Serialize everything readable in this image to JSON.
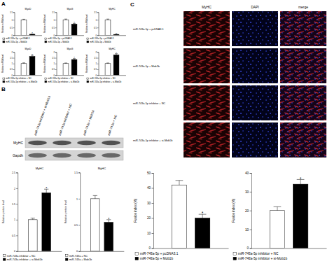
{
  "panel_labels": [
    "A",
    "B",
    "C"
  ],
  "chart_data": [
    {
      "type": "bar",
      "title": "MyoD",
      "y_label": "Relative mRNA level",
      "categories": [
        null
      ],
      "ylim": [
        0,
        1.5
      ],
      "yticks": [
        0,
        0.5,
        1,
        1.5
      ],
      "legend": "bottom",
      "series": [
        {
          "name": "miR-743a-5p + pcDNA3.1",
          "color": "#ffffff",
          "values": [
            1.0
          ],
          "errors": [
            0.04
          ],
          "significance": [
            null
          ]
        },
        {
          "name": "miR-743a-5p + Mob1b",
          "color": "#000000",
          "values": [
            0.06
          ],
          "errors": [
            0.01
          ],
          "significance": [
            "*"
          ]
        }
      ]
    },
    {
      "type": "bar",
      "title": "MyoG",
      "y_label": "Relative mRNA level",
      "categories": [
        null
      ],
      "ylim": [
        0,
        1.5
      ],
      "yticks": [
        0,
        0.5,
        1,
        1.5
      ],
      "legend": "bottom",
      "series": [
        {
          "name": "miR-743a-5p + pcDNA3.1",
          "color": "#ffffff",
          "values": [
            1.0
          ],
          "errors": [
            0.05
          ],
          "significance": [
            null
          ]
        },
        {
          "name": "miR-743a-5p + Mob1b",
          "color": "#000000",
          "values": [
            0.72
          ],
          "errors": [
            0.05
          ],
          "significance": [
            "*"
          ]
        }
      ]
    },
    {
      "type": "bar",
      "title": "MyHC",
      "y_label": "Relative mRNA level",
      "categories": [
        null
      ],
      "ylim": [
        0,
        1.5
      ],
      "yticks": [
        0,
        0.5,
        1,
        1.5
      ],
      "legend": "bottom",
      "series": [
        {
          "name": "miR-743a-5p + pcDNA3.1",
          "color": "#ffffff",
          "values": [
            1.0
          ],
          "errors": [
            0.05
          ],
          "significance": [
            null
          ]
        },
        {
          "name": "miR-743a-5p + Mob1b",
          "color": "#000000",
          "values": [
            0.05
          ],
          "errors": [
            0.01
          ],
          "significance": [
            "*"
          ]
        }
      ]
    },
    {
      "type": "bar",
      "title": "MyoD",
      "y_label": "Relative mRNA level",
      "categories": [
        null
      ],
      "ylim": [
        0,
        2
      ],
      "yticks": [
        0,
        0.5,
        1,
        1.5,
        2
      ],
      "legend": "bottom",
      "series": [
        {
          "name": "miR-743a-5p inhibitor + NC",
          "color": "#ffffff",
          "values": [
            1.0
          ],
          "errors": [
            0.06
          ],
          "significance": [
            null
          ]
        },
        {
          "name": "miR-743a-5p inhibitor + si-Mob1b",
          "color": "#000000",
          "values": [
            1.62
          ],
          "errors": [
            0.1
          ],
          "significance": [
            "*"
          ]
        }
      ]
    },
    {
      "type": "bar",
      "title": "MyoG",
      "y_label": "Relative mRNA level",
      "categories": [
        null
      ],
      "ylim": [
        0,
        2
      ],
      "yticks": [
        0,
        0.5,
        1,
        1.5,
        2
      ],
      "legend": "bottom",
      "series": [
        {
          "name": "miR-743a-5p inhibitor + NC",
          "color": "#ffffff",
          "values": [
            1.0
          ],
          "errors": [
            0.05
          ],
          "significance": [
            null
          ]
        },
        {
          "name": "miR-743a-5p inhibitor + si-Mob1b",
          "color": "#000000",
          "values": [
            1.35
          ],
          "errors": [
            0.08
          ],
          "significance": [
            "*"
          ]
        }
      ]
    },
    {
      "type": "bar",
      "title": "MyHC",
      "y_label": "Relative mRNA level",
      "categories": [
        null
      ],
      "ylim": [
        0,
        2
      ],
      "yticks": [
        0,
        0.5,
        1,
        1.5,
        2
      ],
      "legend": "bottom",
      "series": [
        {
          "name": "miR-743a-5p inhibitor + NC",
          "color": "#ffffff",
          "values": [
            1.0
          ],
          "errors": [
            0.05
          ],
          "significance": [
            null
          ]
        },
        {
          "name": "miR-743a-5p inhibitor + si-Mob1b",
          "color": "#000000",
          "values": [
            1.75
          ],
          "errors": [
            0.1
          ],
          "significance": [
            "*"
          ]
        }
      ]
    },
    {
      "type": "bar",
      "title": "MyHC",
      "y_label": "Relative protein level",
      "categories": [
        null
      ],
      "ylim": [
        0,
        2.5
      ],
      "yticks": [
        0,
        0.5,
        1,
        1.5,
        2,
        2.5
      ],
      "legend": "bottom",
      "series": [
        {
          "name": "miR-743a inhibitor + NC",
          "color": "#ffffff",
          "values": [
            1.0
          ],
          "errors": [
            0.05
          ],
          "significance": [
            null
          ]
        },
        {
          "name": "miR-743a inhibitor + si-Mob1b",
          "color": "#000000",
          "values": [
            1.85
          ],
          "errors": [
            0.12
          ],
          "significance": [
            "*"
          ]
        }
      ]
    },
    {
      "type": "bar",
      "title": "MyHC",
      "y_label": "Relative protein level",
      "categories": [
        null
      ],
      "ylim": [
        0,
        1.5
      ],
      "yticks": [
        0,
        0.5,
        1,
        1.5
      ],
      "legend": "bottom",
      "series": [
        {
          "name": "miR-743a + NC",
          "color": "#ffffff",
          "values": [
            1.0
          ],
          "errors": [
            0.06
          ],
          "significance": [
            null
          ]
        },
        {
          "name": "miR-743a + Mob1b",
          "color": "#000000",
          "values": [
            0.55
          ],
          "errors": [
            0.05
          ],
          "significance": [
            "*"
          ]
        }
      ]
    },
    {
      "type": "bar",
      "y_label": "Fusion index (%)",
      "categories": [
        null
      ],
      "ylim": [
        0,
        50
      ],
      "yticks": [
        0,
        10,
        20,
        30,
        40,
        50
      ],
      "legend": "bottom",
      "series": [
        {
          "name": "miR-743a-5p + pcDNA3.1",
          "color": "#ffffff",
          "values": [
            42
          ],
          "errors": [
            3
          ],
          "significance": [
            null
          ]
        },
        {
          "name": "miR-743a-5p + Mob1b",
          "color": "#000000",
          "values": [
            20
          ],
          "errors": [
            2.5
          ],
          "significance": [
            "*"
          ]
        }
      ]
    },
    {
      "type": "bar",
      "y_label": "Fusion index (%)",
      "categories": [
        null
      ],
      "ylim": [
        0,
        40
      ],
      "yticks": [
        0,
        10,
        20,
        30,
        40
      ],
      "legend": "bottom",
      "series": [
        {
          "name": "miR-743a-5p inhibitor + NC",
          "color": "#ffffff",
          "values": [
            20
          ],
          "errors": [
            2
          ],
          "significance": [
            null
          ]
        },
        {
          "name": "miR-743a-5p inhibitor + si-Mob1b",
          "color": "#000000",
          "values": [
            34
          ],
          "errors": [
            2.5
          ],
          "significance": [
            "*"
          ]
        }
      ]
    }
  ],
  "blot": {
    "lanes": [
      "miR-743a inhibitor + si-Mob1b",
      "miR-743a inhibitor + NC",
      "miR-743a + Mob1b",
      "miR-743a + NC"
    ],
    "rows": [
      "MyHC",
      "Gapdh"
    ]
  },
  "micrographs": {
    "columns": [
      "MyHC",
      "DAPI",
      "merge"
    ],
    "rows": [
      "miR-743a-5p + pcDNA3.1",
      "miR-743a-5p + Mob1b",
      "miR-743a-5p inhibitor + NC",
      "miR-743a-5p inhibitor + si-Mob1b"
    ]
  }
}
